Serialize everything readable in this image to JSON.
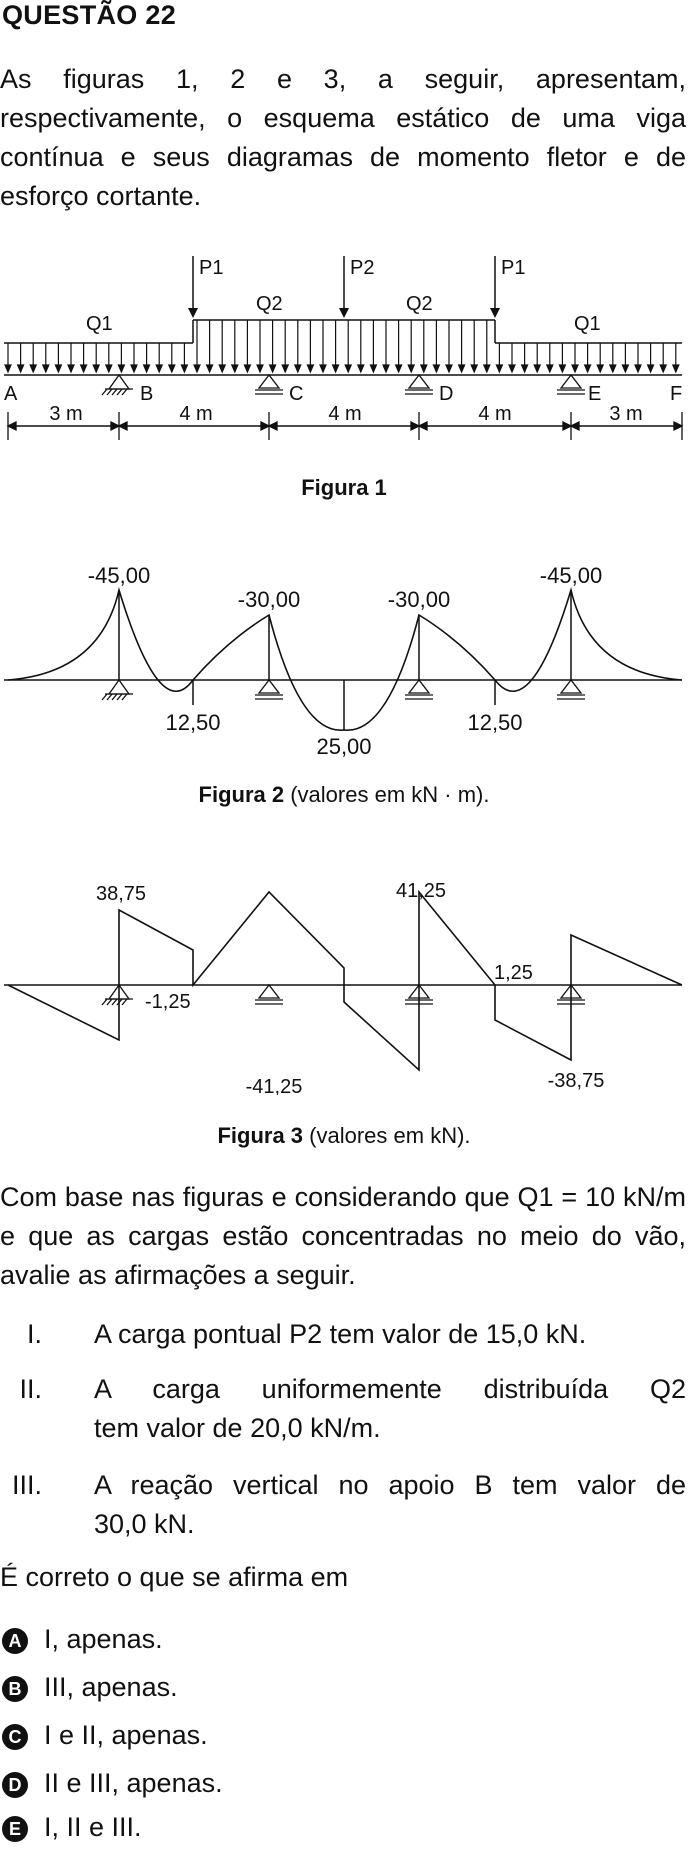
{
  "title": "QUESTÃO 22",
  "intro": "As figuras 1, 2 e 3, a seguir, apresentam, respectivamente, o esquema estático de uma viga contínua e seus diagramas de momento fletor e de esforço cortante.",
  "figure1": {
    "loads": {
      "p1_left": "P1",
      "p2": "P2",
      "p1_right": "P1",
      "q1_left": "Q1",
      "q2_left": "Q2",
      "q2_right": "Q2",
      "q1_right": "Q1"
    },
    "points": {
      "a": "A",
      "b": "B",
      "c": "C",
      "d": "D",
      "e": "E",
      "f": "F"
    },
    "spans": [
      "3 m",
      "4 m",
      "4 m",
      "4 m",
      "3 m"
    ],
    "caption": "Figura 1"
  },
  "figure2": {
    "values": {
      "m_b": "-45,00",
      "m_c": "-30,00",
      "m_d": "-30,00",
      "m_e": "-45,00",
      "m_ab_span": "12,50",
      "m_center": "25,00",
      "m_de_span": "12,50"
    },
    "caption_bold": "Figura 2",
    "caption_rest": " (valores em kN · m)."
  },
  "figure3": {
    "values": {
      "v1": "38,75",
      "v2": "-1,25",
      "v3": "-41,25",
      "v4": "41,25",
      "v5": "1,25",
      "v6": "-38,75"
    },
    "caption_bold": "Figura 3",
    "caption_rest": " (valores em kN)."
  },
  "base_text": "Com base nas figuras e considerando que Q1 = 10 kN/m e que as cargas estão concentradas no meio do vão, avalie as afirmações a seguir.",
  "statements": [
    {
      "num": "I.",
      "line1": "A carga pontual P2 tem valor de 15,0 kN.",
      "line2": ""
    },
    {
      "num": "II.",
      "line1": "A carga uniformemente distribuída Q2",
      "line2": "tem valor de 20,0 kN/m."
    },
    {
      "num": "III.",
      "line1": "A reação vertical no apoio B tem valor de",
      "line2": "30,0 kN."
    }
  ],
  "question": "É correto o que se afirma em",
  "options": [
    {
      "letter": "A",
      "text": "I, apenas."
    },
    {
      "letter": "B",
      "text": "III, apenas."
    },
    {
      "letter": "C",
      "text": "I e II, apenas."
    },
    {
      "letter": "D",
      "text": "II e III, apenas."
    },
    {
      "letter": "E",
      "text": "I, II e III."
    }
  ]
}
